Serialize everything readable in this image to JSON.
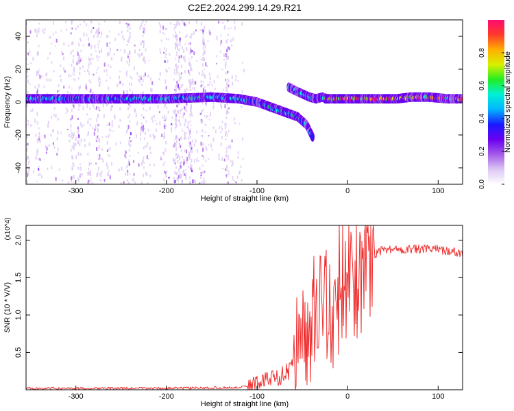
{
  "title": "C2E2.2024.299.14.29.R21",
  "colors": {
    "snr_line": "#ee2b2b",
    "colorbar": [
      "#ffffff",
      "#dcc6f4",
      "#a45ae8",
      "#6a00f0",
      "#1a1aff",
      "#00b4ff",
      "#00f0d8",
      "#22ee22",
      "#d8f000",
      "#ffb000",
      "#ff3a2a",
      "#ff0a70"
    ]
  },
  "chart_data": [
    {
      "type": "heatmap",
      "name": "spectrogram",
      "xlabel": "Height of straight line (km)",
      "ylabel": "Frequency (Hz)",
      "xlim": [
        -355,
        127
      ],
      "ylim": [
        -50,
        50
      ],
      "xticks": [
        -300,
        -200,
        -100,
        0,
        100
      ],
      "xtick_labels": [
        "-300",
        "-200",
        "-100",
        "0",
        "100"
      ],
      "yticks": [
        -40,
        -20,
        0,
        20,
        40
      ],
      "ytick_labels": [
        "-40",
        "-20",
        "0",
        "20",
        "40"
      ],
      "colorbar": {
        "label": "Normalized spectral amplitude",
        "range": [
          0,
          1
        ],
        "ticks": [
          0.0,
          0.2,
          0.4,
          0.6,
          0.8
        ],
        "tick_labels": [
          "0.0",
          "0.2",
          "0.4",
          "0.6",
          "0.8"
        ]
      },
      "tracks": [
        {
          "name": "main-track",
          "x": [
            -355,
            -300,
            -250,
            -200,
            -150,
            -120,
            -100,
            -85,
            -70,
            -55,
            -45,
            -38
          ],
          "y": [
            2,
            2,
            2,
            2,
            3,
            2,
            0,
            -3,
            -6,
            -9,
            -14,
            -22
          ],
          "amp": 0.55
        },
        {
          "name": "branch-track",
          "x": [
            -65,
            -58,
            -50,
            -42,
            -35,
            -28,
            -22
          ],
          "y": [
            9,
            7,
            5,
            3,
            2,
            3,
            2
          ],
          "amp": 0.55
        },
        {
          "name": "post-zero-track",
          "x": [
            -25,
            0,
            20,
            40,
            55,
            70,
            90,
            110,
            127
          ],
          "y": [
            2,
            2,
            2,
            2,
            2,
            3,
            3,
            2,
            2
          ],
          "amp": 0.95
        }
      ],
      "noise_region": {
        "xmin": -355,
        "xmax": -115,
        "density": 0.35
      }
    },
    {
      "type": "line",
      "name": "snr",
      "xlabel": "Height of straight line (km)",
      "ylabel": "SNR (10 * V/V)",
      "scale_label": "(x10^4)",
      "xlim": [
        -355,
        127
      ],
      "ylim": [
        0,
        2.2
      ],
      "xticks": [
        -300,
        -200,
        -100,
        0,
        100
      ],
      "xtick_labels": [
        "-300",
        "-200",
        "-100",
        "0",
        "100"
      ],
      "yticks": [
        0.5,
        1.0,
        1.5,
        2.0
      ],
      "ytick_labels": [
        "0.5",
        "1.0",
        "1.5",
        "2.0"
      ],
      "series": [
        {
          "name": "SNR",
          "x": [
            -355,
            -200,
            -120,
            -105,
            -95,
            -85,
            -75,
            -65,
            -58,
            -50,
            -42,
            -36,
            -30,
            -24,
            -18,
            -12,
            -6,
            0,
            6,
            12,
            18,
            24,
            30,
            35,
            40,
            60,
            80,
            100,
            115,
            127
          ],
          "y": [
            0.02,
            0.02,
            0.03,
            0.06,
            0.12,
            0.15,
            0.18,
            0.25,
            0.4,
            0.55,
            0.75,
            1.0,
            1.05,
            1.2,
            1.0,
            1.1,
            1.3,
            1.25,
            1.3,
            1.35,
            1.5,
            1.7,
            1.78,
            1.85,
            1.88,
            1.88,
            1.88,
            1.88,
            1.85,
            1.82
          ]
        }
      ]
    }
  ]
}
